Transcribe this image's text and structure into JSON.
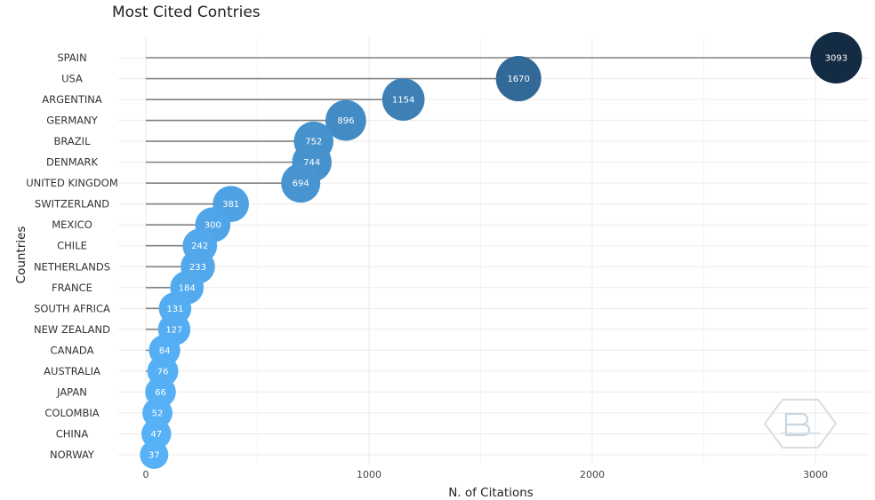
{
  "chart_data": {
    "type": "scatter",
    "subtype": "lollipop",
    "title": "Most Cited Contries",
    "xlabel": "N. of Citations",
    "ylabel": "Countries",
    "xlim": [
      0,
      3250
    ],
    "xticks": [
      0,
      1000,
      2000,
      3000
    ],
    "grid": true,
    "legend": "none",
    "categories": [
      "SPAIN",
      "USA",
      "ARGENTINA",
      "GERMANY",
      "BRAZIL",
      "DENMARK",
      "UNITED KINGDOM",
      "SWITZERLAND",
      "MEXICO",
      "CHILE",
      "NETHERLANDS",
      "FRANCE",
      "SOUTH AFRICA",
      "NEW ZEALAND",
      "CANADA",
      "AUSTRALIA",
      "JAPAN",
      "COLOMBIA",
      "CHINA",
      "NORWAY"
    ],
    "values": [
      3093,
      1670,
      1154,
      896,
      752,
      744,
      694,
      381,
      300,
      242,
      233,
      184,
      131,
      127,
      84,
      76,
      66,
      52,
      47,
      37
    ],
    "colors": {
      "low": "#56b1f7",
      "high": "#132b43",
      "stem": "#808080",
      "grid": "#ebebeb"
    },
    "watermark_icon": "bibliometrix-logo"
  }
}
